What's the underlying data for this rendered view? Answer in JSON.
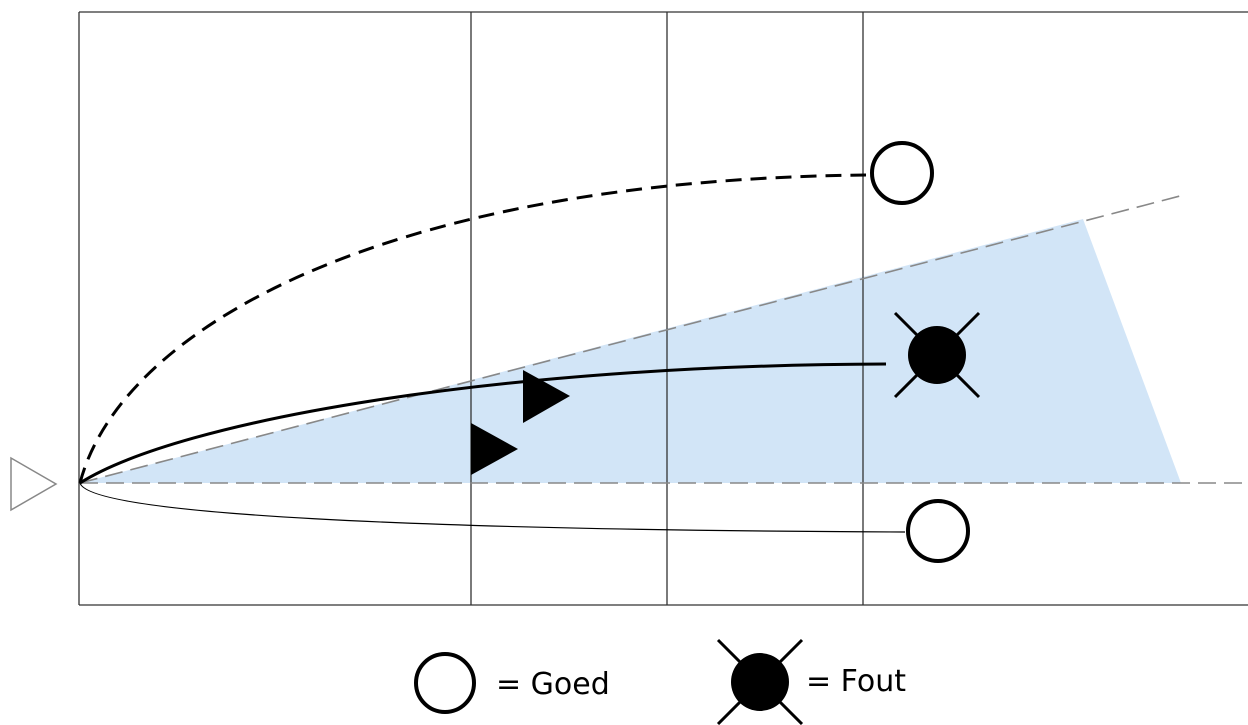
{
  "colors": {
    "zone_fill": "#d2e5f7",
    "frame": "#333333",
    "guide_dash": "#888888",
    "marker": "#000000",
    "background": "#ffffff",
    "start_arrow": "#888888"
  },
  "icons": {
    "start": "hollow-triangle-icon",
    "good_marker": "hollow-circle-icon",
    "bad_marker": "crossed-filled-circle-icon",
    "players": "filled-triangle-icon"
  },
  "legend": {
    "good_label": "= Goed",
    "bad_label": "= Fout"
  }
}
